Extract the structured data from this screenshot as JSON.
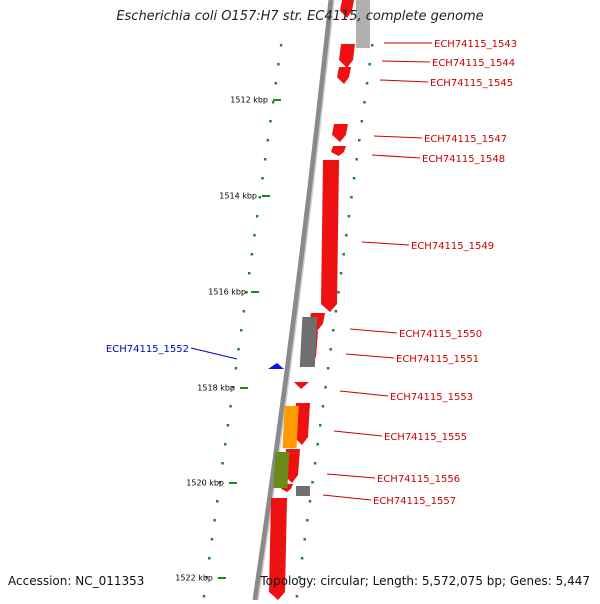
{
  "title": "Escherichia coli O157:H7 str. EC4115, complete genome",
  "footer": {
    "accession": "Accession: NC_011353",
    "summary": "Topology: circular; Length: 5,572,075 bp; Genes: 5,447"
  },
  "colors": {
    "backbone": "#8a8a8a",
    "forward_gene": "#ee1111",
    "reverse_gene": "#1111dd",
    "gray_feature": "#6f6f6f",
    "orange_feature": "#ff9a00",
    "olive_feature": "#6a8a1a",
    "tick": "#1a8a1a",
    "forward_label": "#cc0000",
    "reverse_label": "#0000cc"
  },
  "ticks": [
    {
      "label": "1512 kbp"
    },
    {
      "label": "1514 kbp"
    },
    {
      "label": "1516 kbp"
    },
    {
      "label": "1518 kbp"
    },
    {
      "label": "1520 kbp"
    },
    {
      "label": "1522 kbp"
    }
  ],
  "gene_labels": [
    {
      "name": "ECH74115_1543",
      "strand": "forward"
    },
    {
      "name": "ECH74115_1544",
      "strand": "forward"
    },
    {
      "name": "ECH74115_1545",
      "strand": "forward"
    },
    {
      "name": "ECH74115_1547",
      "strand": "forward"
    },
    {
      "name": "ECH74115_1548",
      "strand": "forward"
    },
    {
      "name": "ECH74115_1549",
      "strand": "forward"
    },
    {
      "name": "ECH74115_1550",
      "strand": "forward"
    },
    {
      "name": "ECH74115_1551",
      "strand": "forward"
    },
    {
      "name": "ECH74115_1552",
      "strand": "reverse"
    },
    {
      "name": "ECH74115_1553",
      "strand": "forward"
    },
    {
      "name": "ECH74115_1555",
      "strand": "forward"
    },
    {
      "name": "ECH74115_1556",
      "strand": "forward"
    },
    {
      "name": "ECH74115_1557",
      "strand": "forward"
    }
  ]
}
